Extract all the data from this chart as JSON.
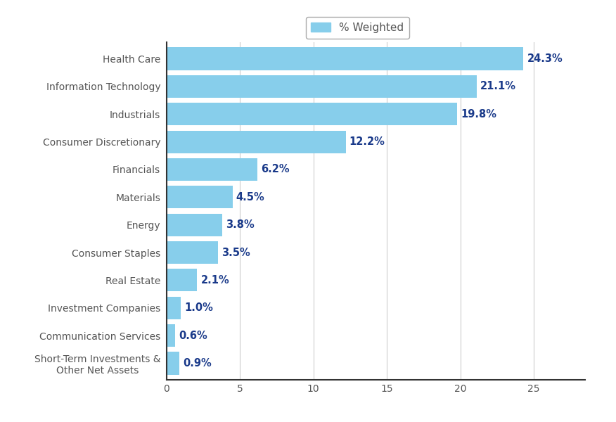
{
  "categories": [
    "Short-Term Investments &\nOther Net Assets",
    "Communication Services",
    "Investment Companies",
    "Real Estate",
    "Consumer Staples",
    "Energy",
    "Materials",
    "Financials",
    "Consumer Discretionary",
    "Industrials",
    "Information Technology",
    "Health Care"
  ],
  "values": [
    0.9,
    0.6,
    1.0,
    2.1,
    3.5,
    3.8,
    4.5,
    6.2,
    12.2,
    19.8,
    21.1,
    24.3
  ],
  "labels": [
    "0.9%",
    "0.6%",
    "1.0%",
    "2.1%",
    "3.5%",
    "3.8%",
    "4.5%",
    "6.2%",
    "12.2%",
    "19.8%",
    "21.1%",
    "24.3%"
  ],
  "bar_color": "#87CEEB",
  "label_color": "#1a3a8a",
  "axis_color": "#555555",
  "spine_color": "#333333",
  "grid_color": "#cccccc",
  "background_color": "#ffffff",
  "legend_label": "% Weighted",
  "xlim": [
    0,
    28.5
  ],
  "xticks": [
    0,
    5,
    10,
    15,
    20,
    25
  ],
  "bar_height": 0.82,
  "figsize": [
    8.76,
    6.0
  ],
  "dpi": 100,
  "label_fontsize": 10.5,
  "tick_fontsize": 10,
  "legend_fontsize": 11
}
